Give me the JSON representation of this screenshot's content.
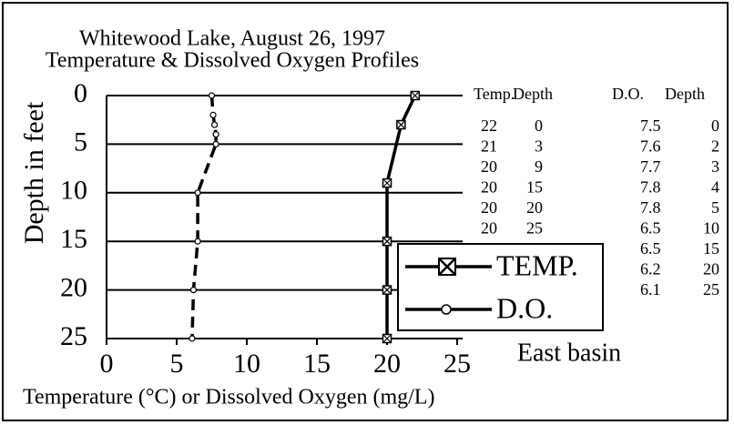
{
  "chart_data": {
    "type": "line",
    "title": "Whitewood Lake, August 26, 1997",
    "subtitle": "Temperature & Dissolved Oxygen Profiles",
    "x_label": "Temperature (°C) or Dissolved Oxygen (mg/L)",
    "y_label": "Depth in feet",
    "annotation": "East basin",
    "xlim": [
      0,
      25
    ],
    "xticks": [
      0,
      5,
      10,
      15,
      20,
      25
    ],
    "ylim": [
      0,
      25
    ],
    "yticks": [
      0,
      5,
      10,
      15,
      20,
      25
    ],
    "y_inverted": true,
    "grid": true,
    "legend": "lower right",
    "table_headers": [
      "Temp.",
      "Depth",
      "D.O.",
      "Depth"
    ],
    "series": [
      {
        "name": "TEMP.",
        "color": "#000000",
        "marker": "x-square",
        "dashed": false,
        "values": [
          22,
          21,
          20,
          20,
          20,
          20
        ],
        "depths": [
          0,
          3,
          9,
          15,
          20,
          25
        ]
      },
      {
        "name": "D.O.",
        "color": "#000000",
        "marker": "circle",
        "dashed": true,
        "values": [
          7.5,
          7.6,
          7.7,
          7.8,
          7.8,
          6.5,
          6.5,
          6.2,
          6.1
        ],
        "depths": [
          0,
          2,
          3,
          4,
          5,
          10,
          15,
          20,
          25
        ]
      }
    ]
  }
}
